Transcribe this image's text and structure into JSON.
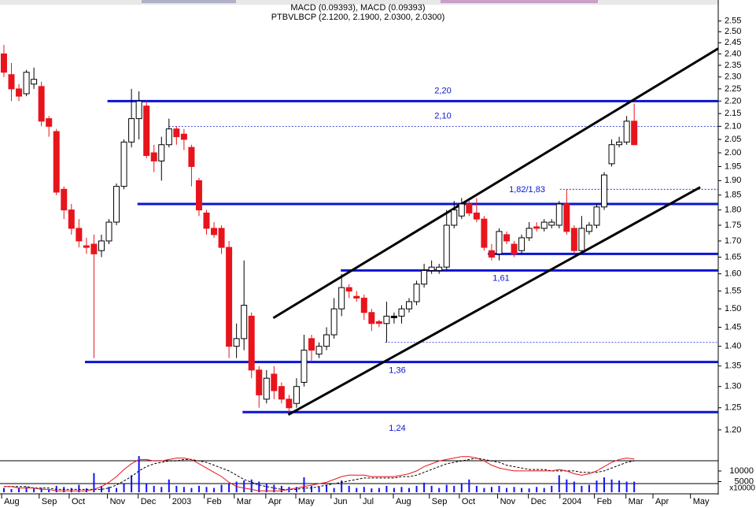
{
  "chart_data": [
    {
      "type": "candlestick",
      "title": "PTBVLBCP (2.1200, 2.1900, 2.0300, 2.0300)",
      "open": [
        2.4,
        2.31,
        2.25,
        2.23,
        2.27,
        2.26,
        2.13,
        2.08,
        1.87,
        1.8,
        1.74,
        1.685,
        1.69,
        1.67,
        1.7,
        1.76,
        1.88,
        2.04,
        2.13,
        2.18,
        2.0,
        1.97,
        2.03,
        2.09,
        2.07,
        2.02,
        1.9,
        1.79,
        1.74,
        1.74,
        1.68,
        1.4,
        1.42,
        1.48,
        1.34,
        1.27,
        1.33,
        1.3,
        1.27,
        1.26,
        1.31,
        1.42,
        1.38,
        1.4,
        1.43,
        1.5,
        1.56,
        1.535,
        1.53,
        1.49,
        1.465,
        1.46,
        1.48,
        1.48,
        1.5,
        1.52,
        1.57,
        1.61,
        1.61,
        1.62,
        1.75,
        1.78,
        1.82,
        1.79,
        1.77,
        1.67,
        1.66,
        1.72,
        1.69,
        1.67,
        1.71,
        1.745,
        1.74,
        1.75,
        1.75,
        1.82,
        1.74,
        1.67,
        1.73,
        1.75,
        1.81,
        1.96,
        2.03,
        2.04,
        2.12
      ],
      "high": [
        2.44,
        2.36,
        2.27,
        2.33,
        2.34,
        2.28,
        2.14,
        2.09,
        1.88,
        1.82,
        1.77,
        1.71,
        1.72,
        1.72,
        1.77,
        1.89,
        2.05,
        2.25,
        2.24,
        2.2,
        2.03,
        2.06,
        2.13,
        2.1,
        2.09,
        2.03,
        1.91,
        1.8,
        1.76,
        1.75,
        1.7,
        1.46,
        1.64,
        1.49,
        1.35,
        1.34,
        1.35,
        1.31,
        1.28,
        1.32,
        1.43,
        1.43,
        1.41,
        1.45,
        1.53,
        1.6,
        1.57,
        1.55,
        1.54,
        1.5,
        1.47,
        1.52,
        1.49,
        1.51,
        1.53,
        1.58,
        1.63,
        1.64,
        1.63,
        1.8,
        1.83,
        1.84,
        1.83,
        1.84,
        1.78,
        1.69,
        1.74,
        1.73,
        1.7,
        1.72,
        1.76,
        1.76,
        1.77,
        1.77,
        1.83,
        1.87,
        1.75,
        1.78,
        1.76,
        1.82,
        1.93,
        2.05,
        2.06,
        2.14,
        2.19
      ],
      "low": [
        2.3,
        2.2,
        2.2,
        2.22,
        2.25,
        2.1,
        2.06,
        1.85,
        1.77,
        1.72,
        1.68,
        1.66,
        1.37,
        1.65,
        1.69,
        1.75,
        1.87,
        2.02,
        2.05,
        1.98,
        1.93,
        1.9,
        2.02,
        2.03,
        2.01,
        1.88,
        1.78,
        1.72,
        1.71,
        1.66,
        1.37,
        1.37,
        1.39,
        1.32,
        1.25,
        1.26,
        1.27,
        1.26,
        1.24,
        1.25,
        1.3,
        1.36,
        1.37,
        1.39,
        1.42,
        1.48,
        1.53,
        1.52,
        1.47,
        1.44,
        1.45,
        1.41,
        1.46,
        1.46,
        1.49,
        1.51,
        1.56,
        1.6,
        1.6,
        1.61,
        1.74,
        1.77,
        1.78,
        1.76,
        1.67,
        1.64,
        1.64,
        1.69,
        1.65,
        1.66,
        1.7,
        1.73,
        1.73,
        1.74,
        1.74,
        1.72,
        1.66,
        1.66,
        1.72,
        1.74,
        1.8,
        1.95,
        2.02,
        2.03,
        2.03
      ],
      "close": [
        2.32,
        2.25,
        2.22,
        2.32,
        2.29,
        2.12,
        2.1,
        1.86,
        1.8,
        1.74,
        1.7,
        1.68,
        1.66,
        1.7,
        1.76,
        1.88,
        2.04,
        2.13,
        2.2,
        1.99,
        1.97,
        2.03,
        2.09,
        2.06,
        2.05,
        1.95,
        1.8,
        1.74,
        1.72,
        1.68,
        1.4,
        1.42,
        1.51,
        1.34,
        1.28,
        1.32,
        1.29,
        1.27,
        1.25,
        1.3,
        1.39,
        1.39,
        1.4,
        1.43,
        1.5,
        1.56,
        1.55,
        1.53,
        1.49,
        1.46,
        1.46,
        1.48,
        1.48,
        1.5,
        1.52,
        1.57,
        1.61,
        1.62,
        1.62,
        1.75,
        1.8,
        1.82,
        1.79,
        1.77,
        1.68,
        1.65,
        1.73,
        1.7,
        1.66,
        1.71,
        1.74,
        1.74,
        1.76,
        1.76,
        1.82,
        1.73,
        1.67,
        1.74,
        1.75,
        1.81,
        1.92,
        2.03,
        2.04,
        2.12,
        2.03
      ],
      "colors": {
        "up": "#ffffff",
        "down": "#e8141c",
        "flat": "#000000",
        "outline": "#000000"
      },
      "ylog": true,
      "ylim": [
        1.137,
        2.62
      ],
      "yticks": [
        {
          "value": 1.2,
          "label": "1.20"
        },
        {
          "value": 1.25,
          "label": "1.25"
        },
        {
          "value": 1.3,
          "label": "1.30"
        },
        {
          "value": 1.35,
          "label": "1.35"
        },
        {
          "value": 1.4,
          "label": "1.40"
        },
        {
          "value": 1.45,
          "label": "1.45"
        },
        {
          "value": 1.5,
          "label": "1.50"
        },
        {
          "value": 1.55,
          "label": "1.55"
        },
        {
          "value": 1.6,
          "label": "1.60"
        },
        {
          "value": 1.65,
          "label": "1.65"
        },
        {
          "value": 1.7,
          "label": "1.70"
        },
        {
          "value": 1.75,
          "label": "1.75"
        },
        {
          "value": 1.8,
          "label": "1.80"
        },
        {
          "value": 1.85,
          "label": "1.85"
        },
        {
          "value": 1.9,
          "label": "1.90"
        },
        {
          "value": 1.95,
          "label": "1.95"
        },
        {
          "value": 2.0,
          "label": "2.00"
        },
        {
          "value": 2.05,
          "label": "2.05"
        },
        {
          "value": 2.1,
          "label": "2.10"
        },
        {
          "value": 2.15,
          "label": "2.15"
        },
        {
          "value": 2.2,
          "label": "2.20"
        },
        {
          "value": 2.25,
          "label": "2.25"
        },
        {
          "value": 2.3,
          "label": "2.30"
        },
        {
          "value": 2.35,
          "label": "2.35"
        },
        {
          "value": 2.4,
          "label": "2.40"
        },
        {
          "value": 2.45,
          "label": "2.45"
        },
        {
          "value": 2.5,
          "label": "2.50"
        },
        {
          "value": 2.55,
          "label": "2.55"
        }
      ],
      "xlim": [
        -0.52,
        95.2
      ],
      "xticks": [
        {
          "value": -0.3,
          "label": "Aug"
        },
        {
          "value": 4.7,
          "label": "Sep"
        },
        {
          "value": 8.7,
          "label": "Oct"
        },
        {
          "value": 13.8,
          "label": "Nov"
        },
        {
          "value": 17.9,
          "label": "Dec"
        },
        {
          "value": 22.1,
          "label": "2003"
        },
        {
          "value": 26.7,
          "label": "Feb"
        },
        {
          "value": 30.7,
          "label": "Mar"
        },
        {
          "value": 34.9,
          "label": "Apr"
        },
        {
          "value": 38.9,
          "label": "May"
        },
        {
          "value": 43.6,
          "label": "Jun"
        },
        {
          "value": 47.5,
          "label": "Jul"
        },
        {
          "value": 51.9,
          "label": "Aug"
        },
        {
          "value": 56.7,
          "label": "Sep"
        },
        {
          "value": 60.7,
          "label": "Oct"
        },
        {
          "value": 65.8,
          "label": "Nov"
        },
        {
          "value": 69.9,
          "label": "Dec"
        },
        {
          "value": 74.1,
          "label": "2004"
        },
        {
          "value": 78.7,
          "label": "Feb"
        },
        {
          "value": 82.9,
          "label": "Mar"
        },
        {
          "value": 86.5,
          "label": "Apr"
        },
        {
          "value": 91.5,
          "label": "May"
        }
      ],
      "levels": [
        {
          "value": 2.2,
          "label": "2,20",
          "start": 13.8,
          "dashed": false
        },
        {
          "value": 2.1,
          "label": "2,10",
          "start": 22.0,
          "dashed": true
        },
        {
          "value": 1.87,
          "start": 74.1,
          "dashed": true
        },
        {
          "value": 1.82,
          "label": "1,82/1,83",
          "start": 17.8,
          "dashed": false
        },
        {
          "value": 1.66,
          "start": 64.5,
          "dashed": false
        },
        {
          "value": 1.61,
          "label": "1,61",
          "start": 44.9,
          "dashed": false
        },
        {
          "value": 1.41,
          "start": 50.8,
          "dashed": true
        },
        {
          "value": 1.36,
          "label": "1,36",
          "start": 10.8,
          "dashed": false
        },
        {
          "value": 1.24,
          "label": "1,24",
          "start": 31.8,
          "dashed": false
        }
      ],
      "level_color": "#0a14d2",
      "trendlines": [
        {
          "x": [
            35.9,
            95.2
          ],
          "y": [
            1.475,
            2.424
          ]
        },
        {
          "x": [
            37.9,
            92.8
          ],
          "y": [
            1.234,
            1.877
          ]
        }
      ],
      "trend_color": "#000000"
    },
    {
      "type": "combo",
      "title": "MACD (0.09393), MACD (0.09393)",
      "volume": [
        2000,
        1500,
        1800,
        2500,
        1800,
        2000,
        1500,
        3000,
        2500,
        2000,
        3500,
        1800,
        9000,
        3000,
        2500,
        2000,
        4000,
        8000,
        17000,
        4000,
        3000,
        2500,
        6000,
        3000,
        2500,
        2000,
        3000,
        2500,
        2000,
        3500,
        4000,
        5000,
        5500,
        6000,
        5000,
        4000,
        3500,
        3000,
        2500,
        2500,
        7000,
        3000,
        2500,
        3500,
        2000,
        5500,
        3000,
        2000,
        2500,
        1800,
        2000,
        3000,
        2000,
        2500,
        2000,
        3000,
        4500,
        3000,
        2000,
        3500,
        3000,
        4000,
        6000,
        3000,
        2000,
        2500,
        3000,
        2000,
        2500,
        2000,
        1800,
        2500,
        2000,
        3000,
        8000,
        6000,
        5000,
        3000,
        3500,
        5500,
        7000,
        6000,
        5500,
        5000,
        5000
      ],
      "volume_color": "#1010ff",
      "ylim": [
        0,
        17400
      ],
      "yticks": [
        10000,
        5000
      ],
      "y_unit_label": "x10000",
      "macd": [
        -0.1,
        -0.1,
        -0.11,
        -0.11,
        -0.11,
        -0.12,
        -0.12,
        -0.13,
        -0.13,
        -0.13,
        -0.13,
        -0.13,
        -0.12,
        -0.1,
        -0.07,
        -0.03,
        0.02,
        0.06,
        0.09,
        0.09,
        0.08,
        0.08,
        0.09,
        0.1,
        0.1,
        0.09,
        0.06,
        0.03,
        0.0,
        -0.03,
        -0.07,
        -0.1,
        -0.11,
        -0.12,
        -0.13,
        -0.13,
        -0.13,
        -0.13,
        -0.12,
        -0.11,
        -0.1,
        -0.09,
        -0.08,
        -0.07,
        -0.05,
        -0.03,
        -0.02,
        -0.02,
        -0.02,
        -0.03,
        -0.03,
        -0.03,
        -0.03,
        -0.02,
        -0.01,
        0.01,
        0.04,
        0.06,
        0.08,
        0.09,
        0.1,
        0.11,
        0.11,
        0.1,
        0.08,
        0.05,
        0.03,
        0.02,
        0.01,
        0.01,
        0.01,
        0.01,
        0.01,
        0.01,
        0.02,
        0.01,
        -0.01,
        -0.02,
        -0.01,
        0.01,
        0.04,
        0.07,
        0.09,
        0.1,
        0.09393
      ],
      "signal": [
        -0.1,
        -0.1,
        -0.1,
        -0.1,
        -0.11,
        -0.11,
        -0.11,
        -0.12,
        -0.12,
        -0.12,
        -0.12,
        -0.12,
        -0.12,
        -0.12,
        -0.11,
        -0.09,
        -0.06,
        -0.03,
        0.01,
        0.04,
        0.06,
        0.07,
        0.08,
        0.08,
        0.09,
        0.09,
        0.08,
        0.07,
        0.05,
        0.03,
        0.01,
        -0.02,
        -0.05,
        -0.07,
        -0.09,
        -0.1,
        -0.11,
        -0.12,
        -0.12,
        -0.12,
        -0.11,
        -0.11,
        -0.1,
        -0.09,
        -0.08,
        -0.07,
        -0.06,
        -0.05,
        -0.04,
        -0.04,
        -0.04,
        -0.04,
        -0.04,
        -0.03,
        -0.03,
        -0.02,
        0.0,
        0.02,
        0.04,
        0.06,
        0.07,
        0.08,
        0.09,
        0.1,
        0.09,
        0.08,
        0.07,
        0.05,
        0.04,
        0.03,
        0.02,
        0.02,
        0.02,
        0.01,
        0.01,
        0.01,
        0.01,
        0.0,
        0.0,
        0.0,
        0.01,
        0.03,
        0.05,
        0.07,
        0.08
      ],
      "macd_color": "#e8141c",
      "signal_color": "#000000",
      "macd_lim": [
        -0.14,
        0.12
      ]
    }
  ]
}
